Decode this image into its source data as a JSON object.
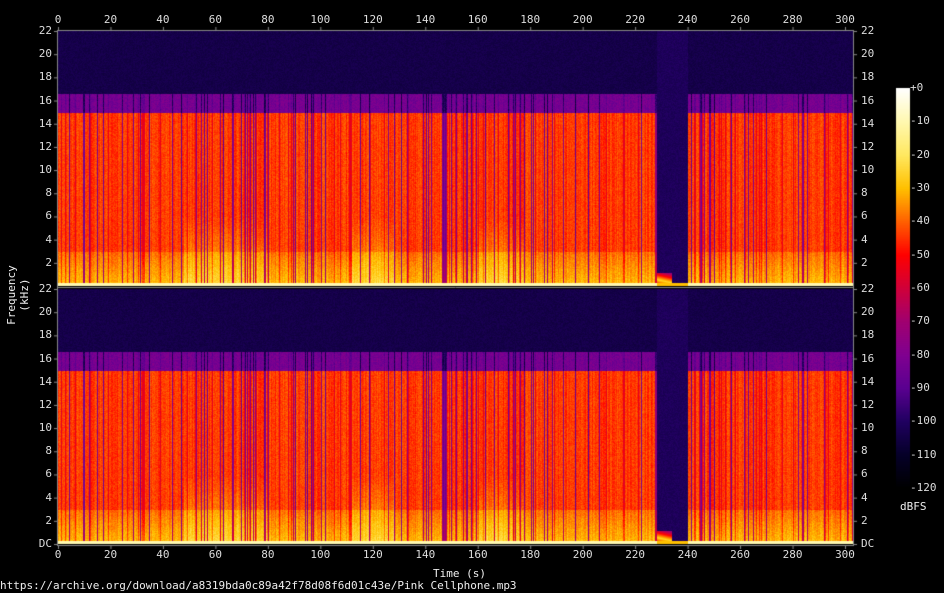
{
  "chart_data": {
    "type": "heatmap",
    "subtype": "spectrogram",
    "channels": 2,
    "xlabel": "Time (s)",
    "ylabel": "Frequency (kHz)",
    "xlim": [
      0,
      303
    ],
    "ylim": [
      0,
      22
    ],
    "x_ticks": [
      "0",
      "20",
      "40",
      "60",
      "80",
      "100",
      "120",
      "140",
      "160",
      "180",
      "200",
      "220",
      "240",
      "260",
      "280",
      "300"
    ],
    "y_ticks": [
      "2",
      "4",
      "6",
      "8",
      "10",
      "12",
      "14",
      "16",
      "18",
      "20",
      "22"
    ],
    "y_bottom_label": "DC",
    "colorbar": {
      "label": "dBFS",
      "range": [
        -120,
        0
      ],
      "ticks": [
        "+0",
        "-10",
        "-20",
        "-30",
        "-40",
        "-50",
        "-60",
        "-70",
        "-80",
        "-90",
        "-100",
        "-110",
        "-120"
      ]
    },
    "colormap": [
      "#000000",
      "#050028",
      "#200060",
      "#5a0090",
      "#800090",
      "#a00070",
      "#d0003a",
      "#ff0000",
      "#ff6000",
      "#ffc000",
      "#ffe860",
      "#fff8b0",
      "#ffffff"
    ],
    "features": {
      "lowpass_cutoff_khz": 15,
      "silence_gap_s": [
        228,
        240
      ]
    }
  },
  "footer": {
    "source": "https://archive.org/download/a8319bda0c89a42f78d08f6d01c43e/Pink Cellphone.mp3"
  }
}
